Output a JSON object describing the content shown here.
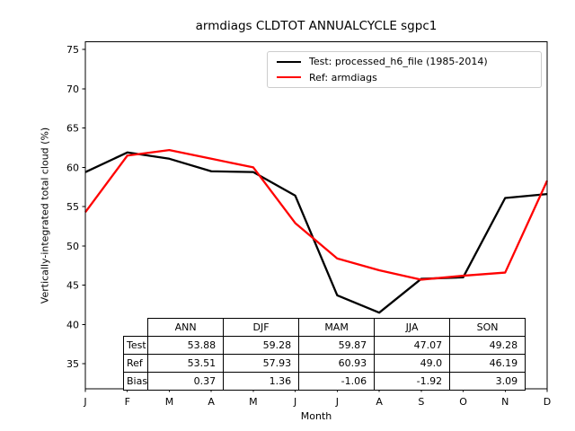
{
  "chart_data": {
    "type": "line",
    "title": "armdiags CLDTOT ANNUALCYCLE sgpc1",
    "xlabel": "Month",
    "ylabel": "Vertically-integrated total cloud (%)",
    "x_tick_labels": [
      "J",
      "F",
      "M",
      "A",
      "M",
      "J",
      "J",
      "A",
      "S",
      "O",
      "N",
      "D"
    ],
    "y_ticks": [
      35,
      40,
      45,
      50,
      55,
      60,
      65,
      70,
      75
    ],
    "ylim": [
      31.8,
      76.0
    ],
    "grid": false,
    "legend_position": "upper right",
    "series": [
      {
        "key": "test",
        "name": "Test: processed_h6_file (1985-2014)",
        "color": "#000000",
        "values": [
          59.4,
          61.9,
          61.1,
          59.5,
          59.4,
          56.4,
          43.7,
          41.5,
          45.8,
          46.0,
          56.1,
          56.6
        ]
      },
      {
        "key": "ref",
        "name": "Ref: armdiags",
        "color": "#ff0000",
        "values": [
          54.3,
          61.5,
          62.2,
          61.1,
          60.0,
          52.9,
          48.4,
          46.9,
          45.7,
          46.2,
          46.6,
          58.3
        ]
      }
    ],
    "table": {
      "col_headers": [
        "ANN",
        "DJF",
        "MAM",
        "JJA",
        "SON"
      ],
      "rows": [
        {
          "label": "Test",
          "values": [
            "53.88",
            "59.28",
            "59.87",
            "47.07",
            "49.28"
          ]
        },
        {
          "label": "Ref",
          "values": [
            "53.51",
            "57.93",
            "60.93",
            "49.0",
            "46.19"
          ]
        },
        {
          "label": "Bias",
          "values": [
            "0.37",
            "1.36",
            "-1.06",
            "-1.92",
            "3.09"
          ]
        }
      ]
    }
  }
}
